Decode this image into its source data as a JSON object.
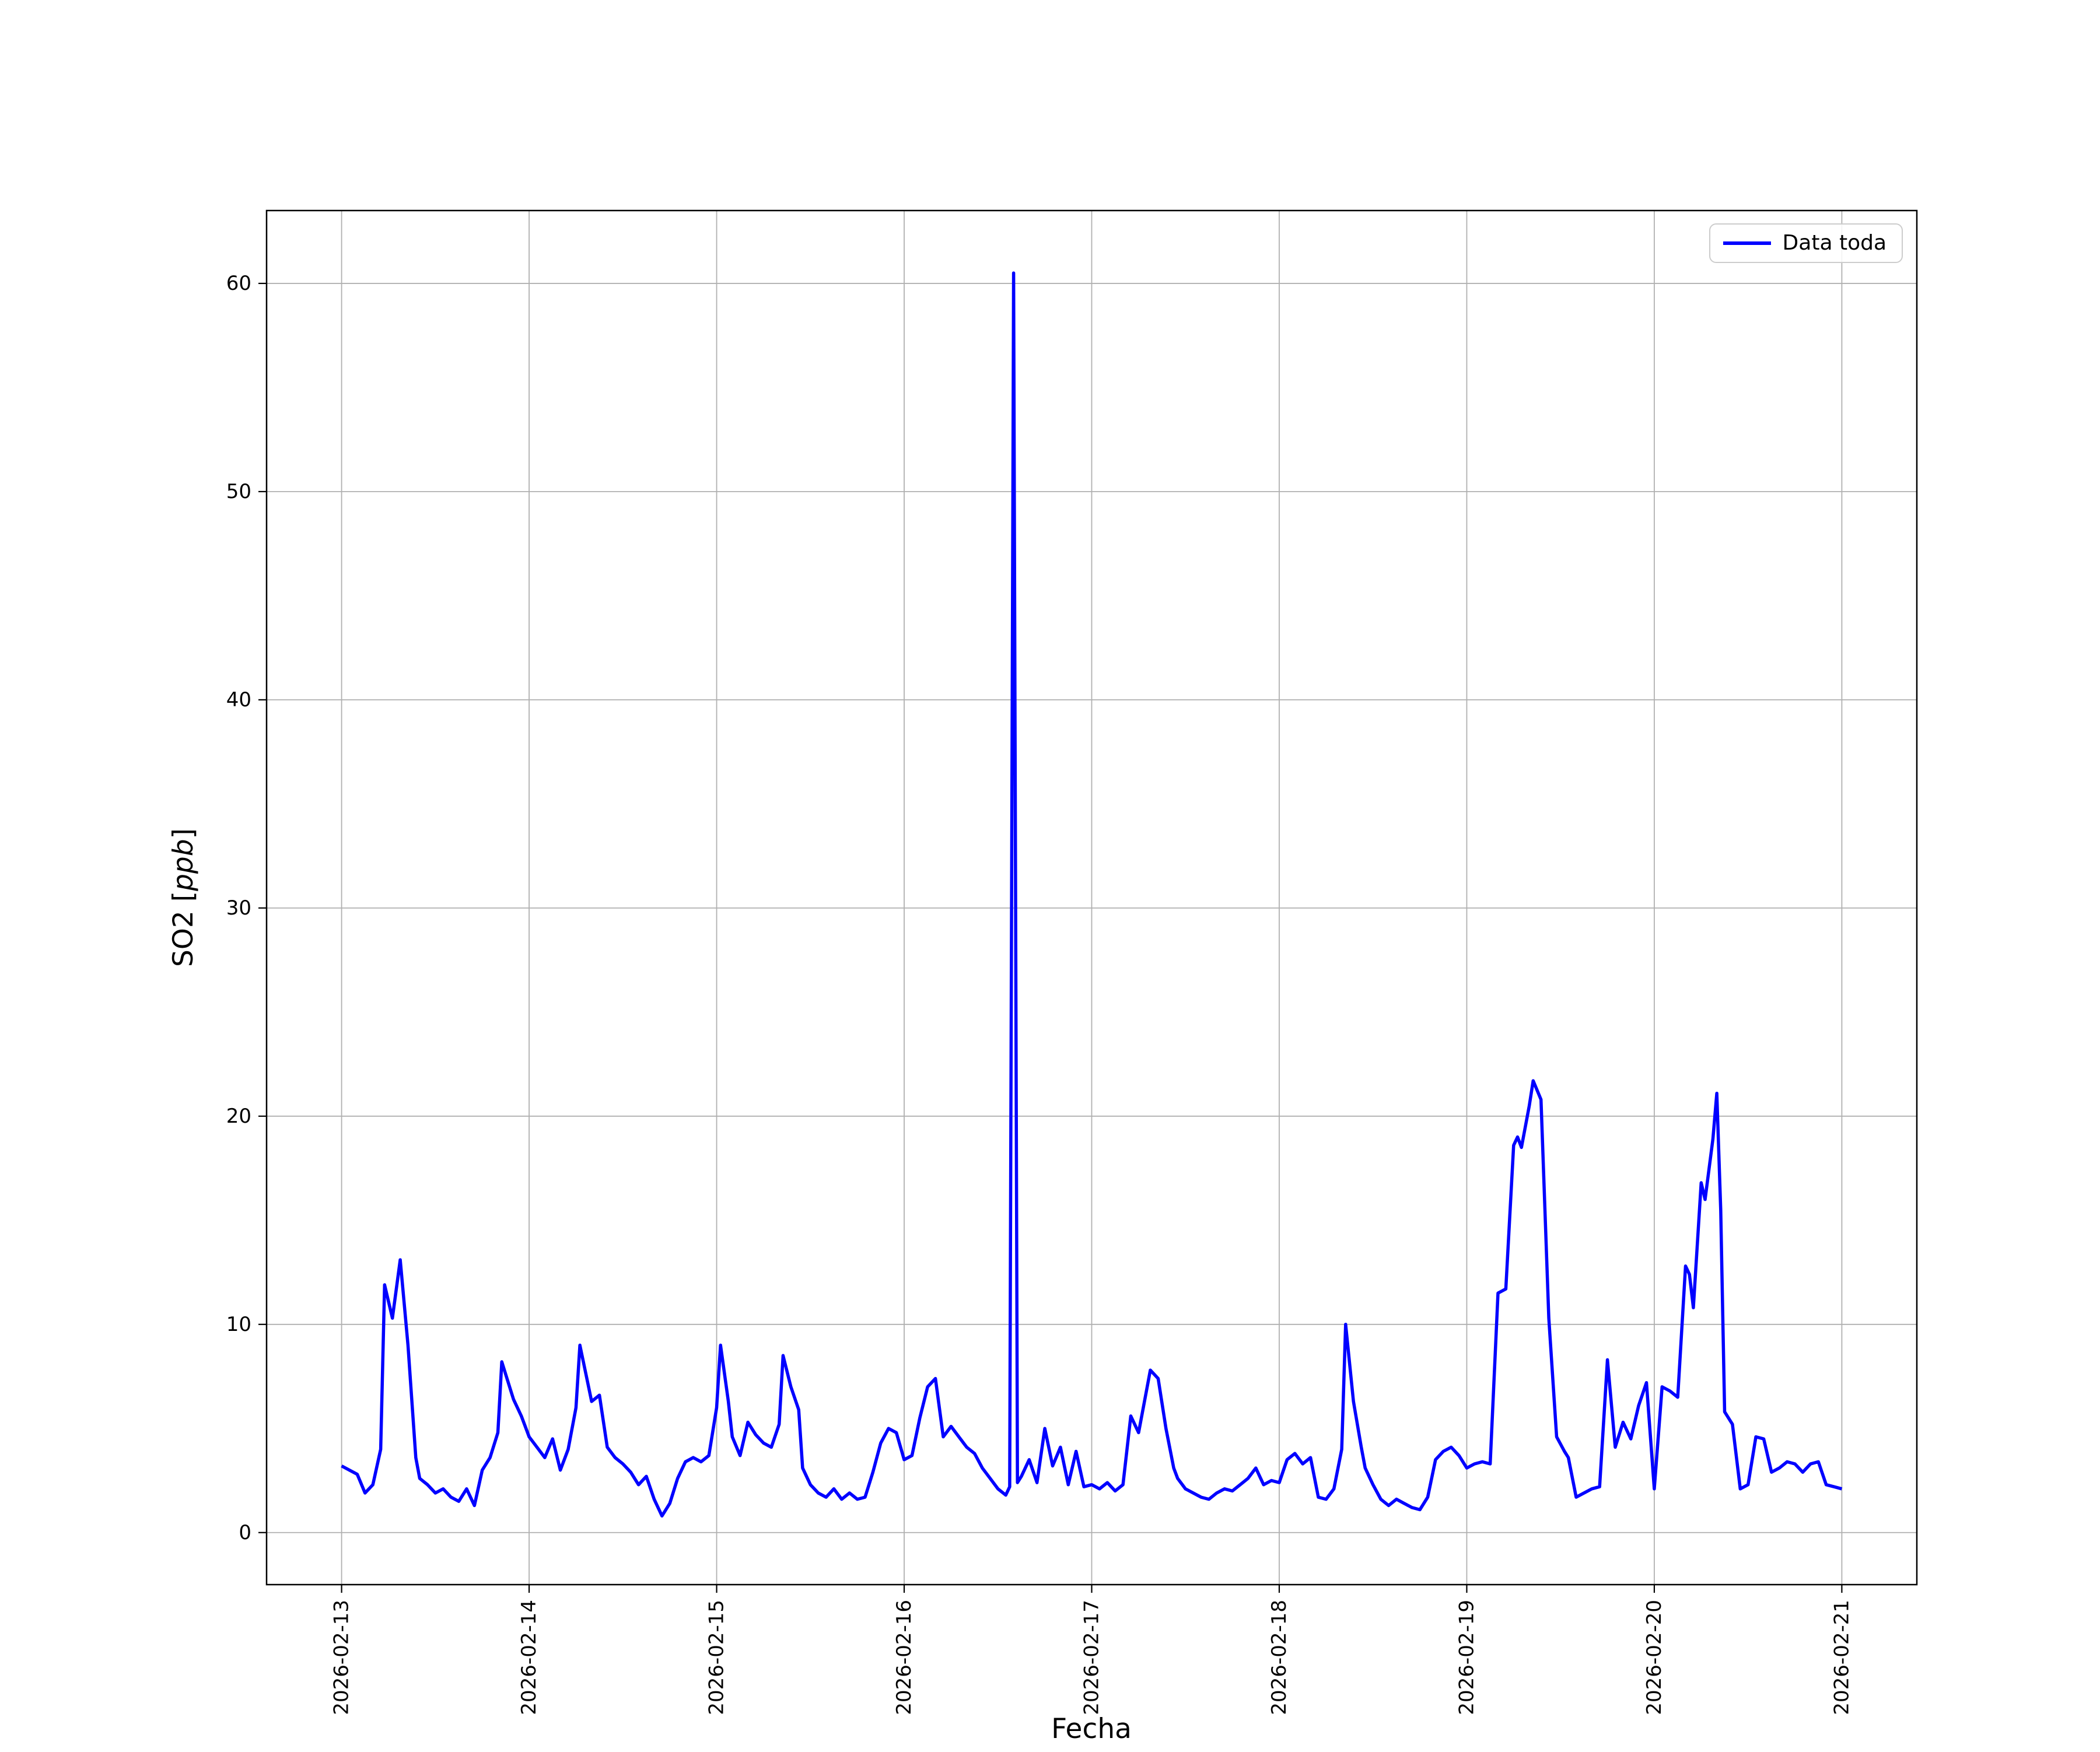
{
  "figure": {
    "background": "#ffffff",
    "ylabel_prefix": "SO2 [",
    "ylabel_italic": "ppb",
    "ylabel_suffix": "]",
    "legend": {
      "label": "Data toda",
      "line_color": "#0000ff"
    }
  },
  "chart_data": {
    "type": "line",
    "title": "",
    "xlabel": "Fecha",
    "ylabel": "SO2 [ppb]",
    "grid": true,
    "grid_color": "#b0b0b0",
    "axis_color": "#000000",
    "legend_position": "upper right",
    "line_color": "#0000ff",
    "line_width": 5.5,
    "x_unit": "hours since 2026-02-13 00:00",
    "xlim": [
      -9.6,
      201.6
    ],
    "ylim": [
      -2.5,
      63.5
    ],
    "y_ticks": [
      0,
      10,
      20,
      30,
      40,
      50,
      60
    ],
    "x_ticks": [
      {
        "t": 0,
        "label": "2026-02-13"
      },
      {
        "t": 24,
        "label": "2026-02-14"
      },
      {
        "t": 48,
        "label": "2026-02-15"
      },
      {
        "t": 72,
        "label": "2026-02-16"
      },
      {
        "t": 96,
        "label": "2026-02-17"
      },
      {
        "t": 120,
        "label": "2026-02-18"
      },
      {
        "t": 144,
        "label": "2026-02-19"
      },
      {
        "t": 168,
        "label": "2026-02-20"
      },
      {
        "t": 192,
        "label": "2026-02-21"
      }
    ],
    "series": [
      {
        "name": "Data toda",
        "points": [
          [
            0,
            3.2
          ],
          [
            1,
            3.0
          ],
          [
            2,
            2.8
          ],
          [
            3,
            1.9
          ],
          [
            4,
            2.3
          ],
          [
            5,
            4.0
          ],
          [
            5.5,
            11.9
          ],
          [
            6.5,
            10.3
          ],
          [
            7.5,
            13.1
          ],
          [
            8.5,
            9.0
          ],
          [
            9.5,
            3.6
          ],
          [
            10,
            2.6
          ],
          [
            11,
            2.3
          ],
          [
            12,
            1.9
          ],
          [
            13,
            2.1
          ],
          [
            14,
            1.7
          ],
          [
            15,
            1.5
          ],
          [
            16,
            2.1
          ],
          [
            17,
            1.3
          ],
          [
            18,
            3.0
          ],
          [
            19,
            3.6
          ],
          [
            20,
            4.8
          ],
          [
            20.5,
            8.2
          ],
          [
            21.5,
            7.0
          ],
          [
            22,
            6.4
          ],
          [
            23,
            5.6
          ],
          [
            24,
            4.6
          ],
          [
            25,
            4.1
          ],
          [
            26,
            3.6
          ],
          [
            27,
            4.5
          ],
          [
            28,
            3.0
          ],
          [
            29,
            4.0
          ],
          [
            30,
            6.0
          ],
          [
            30.5,
            9.0
          ],
          [
            31.5,
            7.2
          ],
          [
            32,
            6.3
          ],
          [
            33,
            6.6
          ],
          [
            34,
            4.1
          ],
          [
            35,
            3.6
          ],
          [
            36,
            3.3
          ],
          [
            37,
            2.9
          ],
          [
            38,
            2.3
          ],
          [
            39,
            2.7
          ],
          [
            40,
            1.6
          ],
          [
            41,
            0.8
          ],
          [
            42,
            1.4
          ],
          [
            43,
            2.6
          ],
          [
            44,
            3.4
          ],
          [
            45,
            3.6
          ],
          [
            46,
            3.4
          ],
          [
            47,
            3.7
          ],
          [
            48,
            6.0
          ],
          [
            48.5,
            9.0
          ],
          [
            49.5,
            6.3
          ],
          [
            50,
            4.6
          ],
          [
            51,
            3.7
          ],
          [
            52,
            5.3
          ],
          [
            53,
            4.7
          ],
          [
            54,
            4.3
          ],
          [
            55,
            4.1
          ],
          [
            56,
            5.2
          ],
          [
            56.5,
            8.5
          ],
          [
            57.5,
            7.0
          ],
          [
            58.5,
            5.9
          ],
          [
            59,
            3.1
          ],
          [
            60,
            2.3
          ],
          [
            61,
            1.9
          ],
          [
            62,
            1.7
          ],
          [
            63,
            2.1
          ],
          [
            64,
            1.6
          ],
          [
            65,
            1.9
          ],
          [
            66,
            1.6
          ],
          [
            67,
            1.7
          ],
          [
            68,
            2.9
          ],
          [
            69,
            4.3
          ],
          [
            70,
            5.0
          ],
          [
            71,
            4.8
          ],
          [
            72,
            3.5
          ],
          [
            73,
            3.7
          ],
          [
            74,
            5.5
          ],
          [
            75,
            7.0
          ],
          [
            76,
            7.4
          ],
          [
            77,
            4.6
          ],
          [
            78,
            5.1
          ],
          [
            79,
            4.6
          ],
          [
            80,
            4.1
          ],
          [
            81,
            3.8
          ],
          [
            82,
            3.1
          ],
          [
            83,
            2.6
          ],
          [
            84,
            2.1
          ],
          [
            85,
            1.8
          ],
          [
            85.5,
            2.2
          ],
          [
            86,
            60.5
          ],
          [
            86.5,
            2.4
          ],
          [
            87,
            2.7
          ],
          [
            88,
            3.5
          ],
          [
            89,
            2.4
          ],
          [
            90,
            5.0
          ],
          [
            91,
            3.2
          ],
          [
            92,
            4.1
          ],
          [
            93,
            2.3
          ],
          [
            94,
            3.9
          ],
          [
            95,
            2.2
          ],
          [
            96,
            2.3
          ],
          [
            97,
            2.1
          ],
          [
            98,
            2.4
          ],
          [
            99,
            2.0
          ],
          [
            100,
            2.3
          ],
          [
            101,
            5.6
          ],
          [
            102,
            4.8
          ],
          [
            103,
            6.8
          ],
          [
            103.5,
            7.8
          ],
          [
            104.5,
            7.4
          ],
          [
            105.5,
            5.0
          ],
          [
            106.5,
            3.1
          ],
          [
            107,
            2.6
          ],
          [
            108,
            2.1
          ],
          [
            109,
            1.9
          ],
          [
            110,
            1.7
          ],
          [
            111,
            1.6
          ],
          [
            112,
            1.9
          ],
          [
            113,
            2.1
          ],
          [
            114,
            2.0
          ],
          [
            115,
            2.3
          ],
          [
            116,
            2.6
          ],
          [
            117,
            3.1
          ],
          [
            118,
            2.3
          ],
          [
            119,
            2.5
          ],
          [
            120,
            2.4
          ],
          [
            121,
            3.5
          ],
          [
            122,
            3.8
          ],
          [
            123,
            3.3
          ],
          [
            124,
            3.6
          ],
          [
            125,
            1.7
          ],
          [
            126,
            1.6
          ],
          [
            127,
            2.1
          ],
          [
            128,
            4.0
          ],
          [
            128.5,
            10.0
          ],
          [
            129.5,
            6.3
          ],
          [
            130.5,
            4.1
          ],
          [
            131,
            3.1
          ],
          [
            132,
            2.3
          ],
          [
            133,
            1.6
          ],
          [
            134,
            1.3
          ],
          [
            135,
            1.6
          ],
          [
            136,
            1.4
          ],
          [
            137,
            1.2
          ],
          [
            138,
            1.1
          ],
          [
            139,
            1.7
          ],
          [
            140,
            3.5
          ],
          [
            141,
            3.9
          ],
          [
            142,
            4.1
          ],
          [
            143,
            3.7
          ],
          [
            144,
            3.1
          ],
          [
            145,
            3.3
          ],
          [
            146,
            3.4
          ],
          [
            147,
            3.3
          ],
          [
            148,
            11.5
          ],
          [
            149,
            11.7
          ],
          [
            150,
            18.6
          ],
          [
            150.5,
            19.0
          ],
          [
            151,
            18.5
          ],
          [
            152,
            20.5
          ],
          [
            152.5,
            21.7
          ],
          [
            153.5,
            20.8
          ],
          [
            154.5,
            10.3
          ],
          [
            155.5,
            4.6
          ],
          [
            156.5,
            3.9
          ],
          [
            157,
            3.6
          ],
          [
            158,
            1.7
          ],
          [
            159,
            1.9
          ],
          [
            160,
            2.1
          ],
          [
            161,
            2.2
          ],
          [
            162,
            8.3
          ],
          [
            163,
            4.1
          ],
          [
            164,
            5.3
          ],
          [
            165,
            4.5
          ],
          [
            166,
            6.1
          ],
          [
            167,
            7.2
          ],
          [
            168,
            2.1
          ],
          [
            169,
            7.0
          ],
          [
            170,
            6.8
          ],
          [
            171,
            6.5
          ],
          [
            172,
            12.8
          ],
          [
            172.5,
            12.4
          ],
          [
            173,
            10.8
          ],
          [
            174,
            16.8
          ],
          [
            174.5,
            16.0
          ],
          [
            175.5,
            18.9
          ],
          [
            176,
            21.1
          ],
          [
            176.5,
            15.5
          ],
          [
            177,
            5.8
          ],
          [
            178,
            5.2
          ],
          [
            179,
            2.1
          ],
          [
            180,
            2.3
          ],
          [
            181,
            4.6
          ],
          [
            182,
            4.5
          ],
          [
            183,
            2.9
          ],
          [
            184,
            3.1
          ],
          [
            185,
            3.4
          ],
          [
            186,
            3.3
          ],
          [
            187,
            2.9
          ],
          [
            188,
            3.3
          ],
          [
            189,
            3.4
          ],
          [
            190,
            2.3
          ],
          [
            191,
            2.2
          ],
          [
            192,
            2.1
          ]
        ]
      }
    ]
  }
}
